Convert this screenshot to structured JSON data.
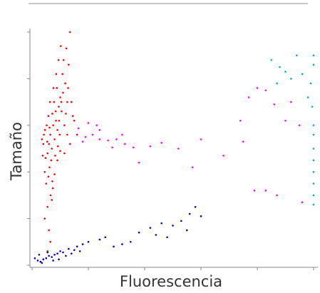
{
  "chart_data": {
    "type": "scatter",
    "x_label": "Fluorescencia",
    "y_label": "Tamaño",
    "xlim": [
      0,
      1000
    ],
    "ylim": [
      0,
      1000
    ],
    "xticks": [
      0,
      200,
      400,
      600,
      800,
      1000
    ],
    "yticks": [
      0,
      200,
      400,
      600,
      800,
      1000
    ],
    "series": [
      {
        "color": "#ff0000",
        "x": [
          60,
          65,
          70,
          75,
          80,
          55,
          85,
          90,
          72,
          68,
          62,
          78,
          95,
          100,
          88,
          110,
          105,
          58,
          50,
          45,
          66,
          74,
          82,
          92,
          98,
          115,
          120,
          125,
          118,
          108,
          112,
          122,
          135,
          130,
          128,
          140,
          145,
          100,
          70,
          55,
          48,
          40,
          42,
          52,
          58,
          64,
          76,
          86,
          94,
          102,
          38,
          35,
          46,
          54,
          62,
          84,
          96,
          104,
          90,
          80,
          72,
          60,
          55,
          65,
          45,
          150,
          160,
          135,
          125,
          115
        ],
        "y": [
          520,
          560,
          500,
          600,
          540,
          480,
          620,
          580,
          650,
          450,
          420,
          700,
          680,
          720,
          760,
          740,
          660,
          380,
          350,
          400,
          300,
          330,
          470,
          510,
          560,
          600,
          650,
          700,
          780,
          820,
          880,
          930,
          1000,
          860,
          760,
          700,
          640,
          490,
          280,
          250,
          460,
          520,
          560,
          600,
          640,
          700,
          760,
          820,
          880,
          940,
          470,
          540,
          580,
          530,
          590,
          660,
          620,
          700,
          450,
          390,
          360,
          150,
          60,
          100,
          200,
          620,
          560,
          520,
          560,
          480
        ]
      },
      {
        "color": "#ff00ff",
        "x": [
          165,
          190,
          215,
          240,
          270,
          300,
          330,
          360,
          420,
          520,
          600,
          680,
          570,
          380,
          200,
          180,
          230,
          460,
          750,
          740,
          770,
          800,
          830,
          860,
          900,
          920,
          950,
          870,
          830,
          790,
          960,
          240,
          285,
          320
        ],
        "y": [
          587,
          550,
          560,
          540,
          535,
          540,
          520,
          505,
          510,
          500,
          540,
          470,
          420,
          440,
          610,
          530,
          600,
          525,
          530,
          620,
          720,
          760,
          750,
          690,
          620,
          700,
          600,
          300,
          320,
          320,
          270,
          580,
          505,
          560
        ]
      },
      {
        "color": "#0000cc",
        "x": [
          20,
          30,
          40,
          50,
          60,
          70,
          80,
          90,
          100,
          110,
          130,
          150,
          160,
          180,
          200,
          240,
          260,
          290,
          320,
          350,
          380,
          420,
          460,
          500,
          530,
          560,
          580,
          600,
          550,
          480,
          440,
          10,
          25,
          35,
          55,
          75,
          95,
          120,
          140,
          170
        ],
        "y": [
          20,
          15,
          25,
          30,
          40,
          35,
          45,
          50,
          60,
          55,
          70,
          65,
          80,
          90,
          100,
          110,
          120,
          80,
          90,
          100,
          140,
          160,
          180,
          170,
          190,
          220,
          250,
          210,
          150,
          120,
          130,
          30,
          45,
          10,
          55,
          20,
          25,
          40,
          50,
          60
        ]
      },
      {
        "color": "#00b0b0",
        "x": [
          850,
          880,
          900,
          920,
          940,
          960,
          990,
          1000,
          1000,
          1000,
          1000,
          1000,
          1000,
          1000,
          1000,
          1000,
          1000,
          980,
          995,
          870
        ],
        "y": [
          880,
          850,
          830,
          800,
          900,
          820,
          780,
          900,
          860,
          600,
          560,
          500,
          450,
          400,
          350,
          300,
          260,
          720,
          680,
          780
        ]
      }
    ]
  }
}
